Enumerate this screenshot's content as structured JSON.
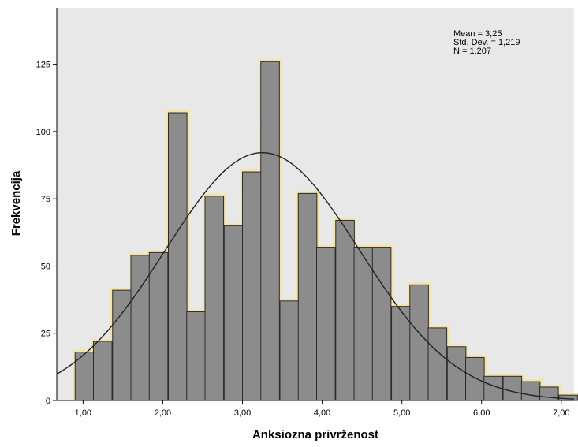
{
  "chart_data": {
    "type": "bar",
    "subtype": "histogram",
    "xlabel": "Anksiozna privrženost",
    "ylabel": "Frekvencija",
    "xlim": [
      0.67,
      7.16
    ],
    "ylim": [
      0,
      146
    ],
    "bin_width": 0.2333,
    "bin_starts": [
      0.9,
      1.13,
      1.37,
      1.6,
      1.83,
      2.07,
      2.3,
      2.53,
      2.77,
      3.0,
      3.23,
      3.47,
      3.7,
      3.93,
      4.17,
      4.4,
      4.63,
      4.87,
      5.1,
      5.33,
      5.57,
      5.8,
      6.03,
      6.27,
      6.5,
      6.73,
      6.97
    ],
    "values": [
      18,
      22,
      41,
      54,
      55,
      107,
      33,
      76,
      65,
      85,
      126,
      37,
      77,
      57,
      67,
      57,
      57,
      35,
      43,
      27,
      20,
      16,
      9,
      9,
      7,
      5,
      2
    ],
    "x_ticks": [
      1,
      2,
      3,
      4,
      5,
      6,
      7
    ],
    "x_tick_labels": [
      "1,00",
      "2,00",
      "3,00",
      "4,00",
      "5,00",
      "6,00",
      "7,00"
    ],
    "y_ticks": [
      0,
      25,
      50,
      75,
      100,
      125
    ],
    "y_tick_labels": [
      "0",
      "25",
      "50",
      "75",
      "100",
      "125"
    ],
    "normal_curve": {
      "mean": 3.25,
      "sd": 1.219,
      "n": 1207
    },
    "stats_lines": [
      "Mean = 3,25",
      "Std. Dev. = 1,219",
      "N = 1.207"
    ],
    "colors": {
      "plot_bg": "#e8e8e8",
      "bar_fill": "#8c8c8c",
      "bar_stroke": "#2b2b2b",
      "glow": "#f7e39a",
      "curve": "#222222"
    }
  }
}
